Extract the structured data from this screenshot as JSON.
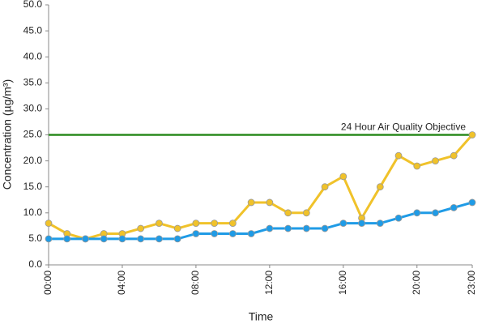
{
  "chart_data": {
    "type": "line",
    "x_label": "Time",
    "y_label": "Concentration (µg/m³)",
    "categories": [
      "00:00",
      null,
      null,
      null,
      "04:00",
      null,
      null,
      null,
      "08:00",
      null,
      null,
      null,
      "12:00",
      null,
      null,
      null,
      "16:00",
      null,
      null,
      null,
      "20:00",
      null,
      null,
      "23:00"
    ],
    "series": [
      {
        "color": "#f0c22a",
        "values": [
          8,
          6,
          5,
          6,
          6,
          7,
          8,
          7,
          8,
          8,
          8,
          12,
          12,
          10,
          10,
          15,
          17,
          9,
          15,
          21,
          19,
          20,
          21,
          25
        ]
      },
      {
        "color": "#1f9be6",
        "values": [
          5,
          5,
          5,
          5,
          5,
          5,
          5,
          5,
          6,
          6,
          6,
          6,
          7,
          7,
          7,
          7,
          8,
          8,
          8,
          9,
          10,
          10,
          11,
          12
        ]
      }
    ],
    "annotations": [
      {
        "text": "24 Hour Air Quality Objective",
        "value": 25,
        "color": "#2a8a1e"
      }
    ],
    "ylim": [
      0,
      50
    ],
    "yticks": [
      {
        "value": 0,
        "label": "0.0"
      },
      {
        "value": 5,
        "label": "5.0"
      },
      {
        "value": 10,
        "label": "10.0"
      },
      {
        "value": 15,
        "label": "15.0"
      },
      {
        "value": 20,
        "label": "20.0"
      },
      {
        "value": 25,
        "label": "25.0"
      },
      {
        "value": 30,
        "label": "30.0"
      },
      {
        "value": 35,
        "label": "35.0"
      },
      {
        "value": 40,
        "label": "40.0"
      },
      {
        "value": 45,
        "label": "45.0"
      },
      {
        "value": 50,
        "label": "50.0"
      }
    ],
    "grid": false
  }
}
